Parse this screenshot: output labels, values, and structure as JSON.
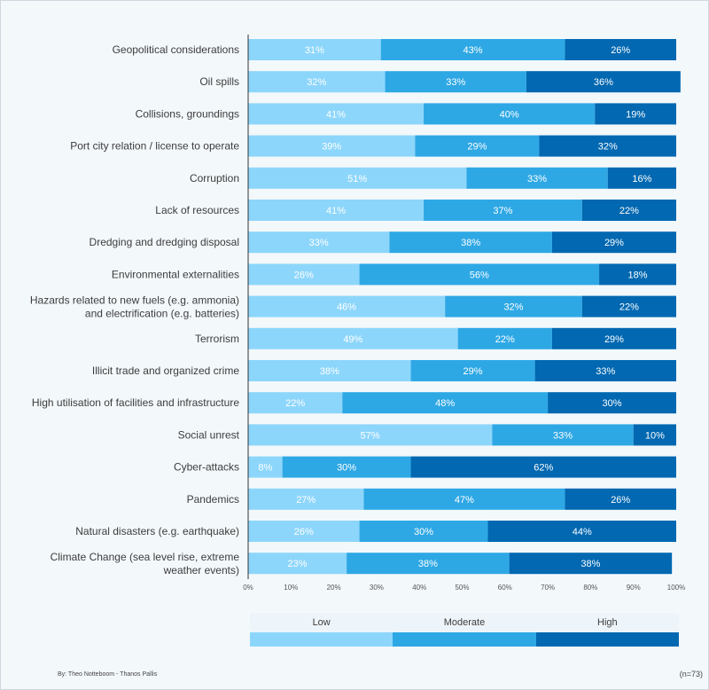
{
  "colors": {
    "low": "#8dd6fb",
    "moderate": "#2ea8e5",
    "high": "#0168b1"
  },
  "chart_data": {
    "type": "bar",
    "orientation": "horizontal",
    "stacked": true,
    "percent_stacked": true,
    "categories": [
      "Geopolitical considerations",
      "Oil spills",
      "Collisions, groundings",
      "Port city relation / license to operate",
      "Corruption",
      "Lack of resources",
      "Dredging and dredging disposal",
      "Environmental externalities",
      "Hazards related to new fuels (e.g. ammonia)\nand electrification (e.g. batteries)",
      "Terrorism",
      "Illicit trade and organized crime",
      "High utilisation of facilities and infrastructure",
      "Social unrest",
      "Cyber-attacks",
      "Pandemics",
      "Natural disasters (e.g. earthquake)",
      "Climate Change (sea level rise, extreme\nweather events)"
    ],
    "series": [
      {
        "name": "Low",
        "values": [
          31,
          32,
          41,
          39,
          51,
          41,
          33,
          26,
          46,
          49,
          38,
          22,
          57,
          8,
          27,
          26,
          23
        ]
      },
      {
        "name": "Moderate",
        "values": [
          43,
          33,
          40,
          29,
          33,
          37,
          38,
          56,
          32,
          22,
          29,
          48,
          33,
          30,
          47,
          30,
          38
        ]
      },
      {
        "name": "High",
        "values": [
          26,
          36,
          19,
          32,
          16,
          22,
          29,
          18,
          22,
          29,
          33,
          30,
          10,
          62,
          26,
          44,
          38
        ]
      }
    ],
    "xticks": [
      "0%",
      "10%",
      "20%",
      "30%",
      "40%",
      "50%",
      "60%",
      "70%",
      "80%",
      "90%",
      "100%"
    ],
    "xlim": [
      0,
      100
    ],
    "grid": false,
    "legend_position": "bottom"
  },
  "footer": {
    "credit": "By: Theo Notteboom - Thanos Pallis",
    "sample": "(n=73)"
  }
}
